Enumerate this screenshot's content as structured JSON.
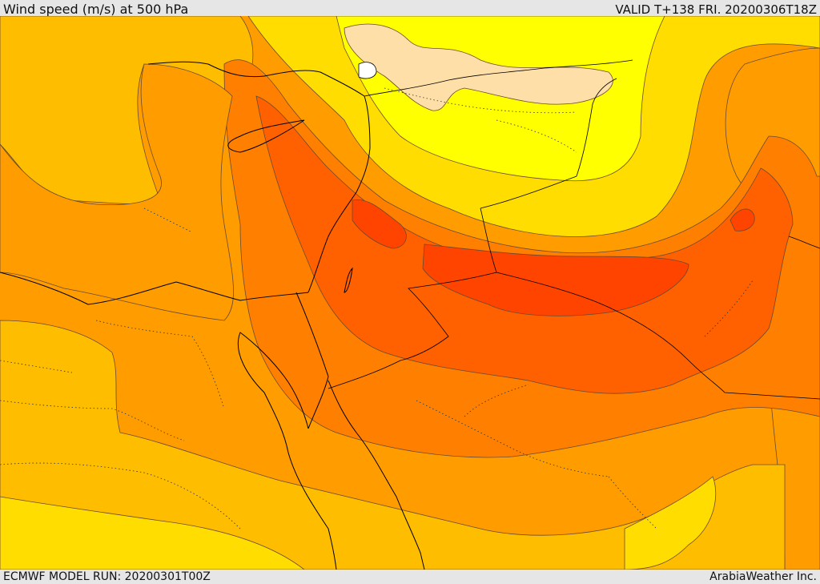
{
  "header": {
    "title": "Wind speed (m/s) at 500 hPa",
    "valid": "VALID T+138 FRI. 20200306T18Z"
  },
  "footer": {
    "model_run": "ECMWF MODEL RUN: 20200301T00Z",
    "credit": "ArabiaWeather Inc."
  },
  "map": {
    "field": "wind-speed-500hpa",
    "palette": {
      "band_1": "#ffffb0",
      "band_2": "#ffdfa8",
      "band_3": "#ffff00",
      "band_4": "#ffdd00",
      "band_5": "#ffbd00",
      "band_6": "#ff9d00",
      "band_7": "#ff7f00",
      "band_8": "#ff6000",
      "band_9": "#ff4400"
    },
    "coast_color": "#000000",
    "contour_color": "#555555"
  }
}
